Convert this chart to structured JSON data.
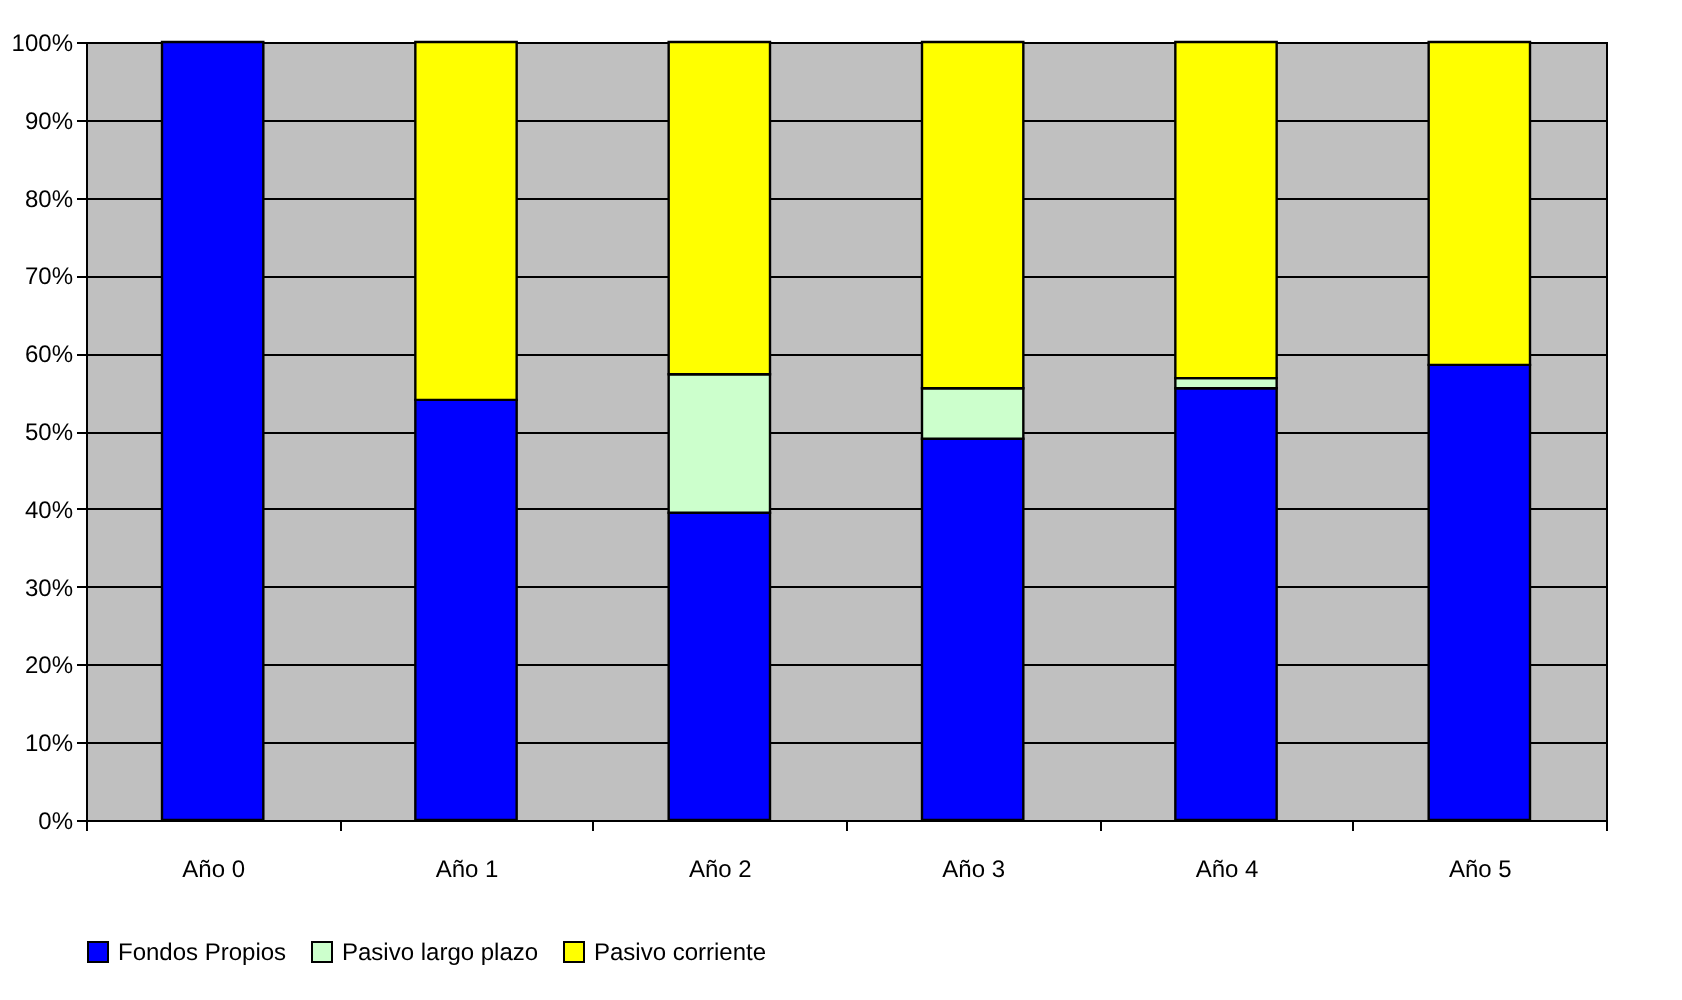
{
  "chart_data": {
    "type": "bar",
    "stacked": true,
    "categories": [
      "Año 0",
      "Año 1",
      "Año 2",
      "Año 3",
      "Año 4",
      "Año 5"
    ],
    "series": [
      {
        "name": "Fondos Propios",
        "color": "#0000ff",
        "values": [
          100,
          54,
          39.5,
          49,
          55.5,
          58.5
        ]
      },
      {
        "name": "Pasivo largo plazo",
        "color": "#ccffcc",
        "values": [
          0,
          0,
          17.8,
          6.5,
          1.3,
          0
        ]
      },
      {
        "name": "Pasivo corriente",
        "color": "#ffff00",
        "values": [
          0,
          46,
          42.7,
          44.5,
          43.2,
          41.5
        ]
      }
    ],
    "ylim": [
      0,
      100
    ],
    "yticks": [
      {
        "value": 0,
        "label": "0%"
      },
      {
        "value": 10,
        "label": "10%"
      },
      {
        "value": 20,
        "label": "20%"
      },
      {
        "value": 30,
        "label": "30%"
      },
      {
        "value": 40,
        "label": "40%"
      },
      {
        "value": 50,
        "label": "50%"
      },
      {
        "value": 60,
        "label": "60%"
      },
      {
        "value": 70,
        "label": "70%"
      },
      {
        "value": 80,
        "label": "80%"
      },
      {
        "value": 90,
        "label": "90%"
      },
      {
        "value": 100,
        "label": "100%"
      }
    ],
    "grid": "y",
    "legend": "bottom"
  }
}
